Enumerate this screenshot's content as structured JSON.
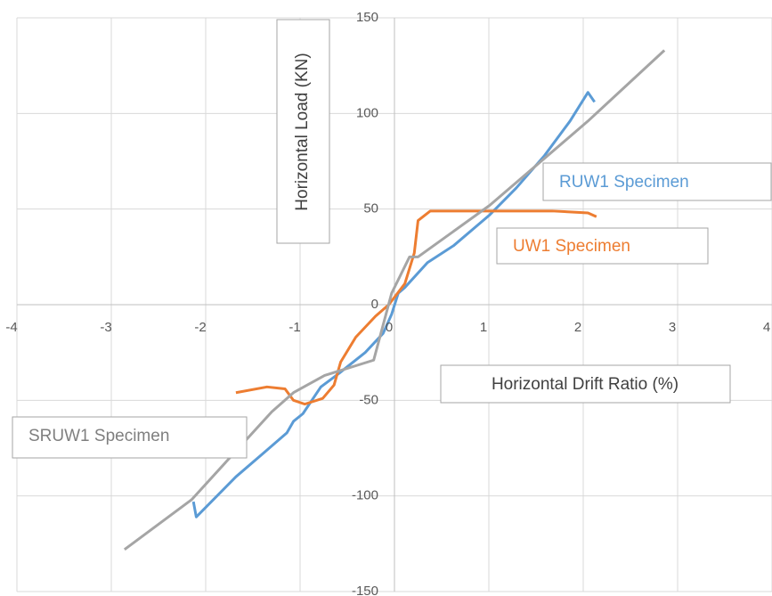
{
  "chart_data": {
    "type": "line",
    "x_label": "Horizontal Drift Ratio (%)",
    "y_label": "Horizontal Load (KN)",
    "xlim": [
      -4,
      4
    ],
    "xticks": [
      -4,
      -3,
      -2,
      -1,
      0,
      1,
      2,
      3,
      4
    ],
    "ylim": [
      -150,
      150
    ],
    "yticks": [
      -150,
      -100,
      -50,
      0,
      50,
      100,
      150
    ],
    "grid": true,
    "series": [
      {
        "name": "RUW1  Specimen",
        "color": "#5b9bd5",
        "x": [
          -2.13,
          -2.1,
          -1.68,
          -1.35,
          -1.14,
          -1.07,
          -0.97,
          -0.78,
          -0.59,
          -0.31,
          -0.12,
          -0.03,
          0.04,
          0.11,
          0.35,
          0.63,
          1.01,
          1.29,
          1.59,
          1.86,
          2.05,
          2.12
        ],
        "values": [
          -103,
          -111,
          -90,
          -76,
          -67,
          -61,
          -57,
          -43,
          -36,
          -25,
          -15,
          -5,
          6,
          9,
          22,
          31,
          47,
          61,
          78,
          96,
          111,
          106
        ]
      },
      {
        "name": "UW1 Specimen",
        "color": "#ed7d31",
        "x": [
          -1.68,
          -1.35,
          -1.16,
          -1.07,
          -0.95,
          -0.76,
          -0.64,
          -0.57,
          -0.41,
          -0.2,
          -0.06,
          0.11,
          0.21,
          0.25,
          0.38,
          1.01,
          1.67,
          2.05,
          2.14
        ],
        "values": [
          -46,
          -43,
          -44,
          -50,
          -52,
          -49,
          -42,
          -30,
          -17,
          -6,
          0,
          11,
          27,
          44,
          49,
          49,
          49,
          48,
          46
        ]
      },
      {
        "name": "SRUW1 Specimen",
        "color": "#a5a5a5",
        "x": [
          -2.86,
          -2.15,
          -1.3,
          -1.07,
          -0.74,
          -0.22,
          -0.03,
          0.16,
          0.25,
          1.01,
          2.05,
          2.86
        ],
        "values": [
          -128,
          -102,
          -56,
          -46,
          -37,
          -29,
          6,
          25,
          25,
          52,
          96,
          133
        ]
      }
    ]
  }
}
